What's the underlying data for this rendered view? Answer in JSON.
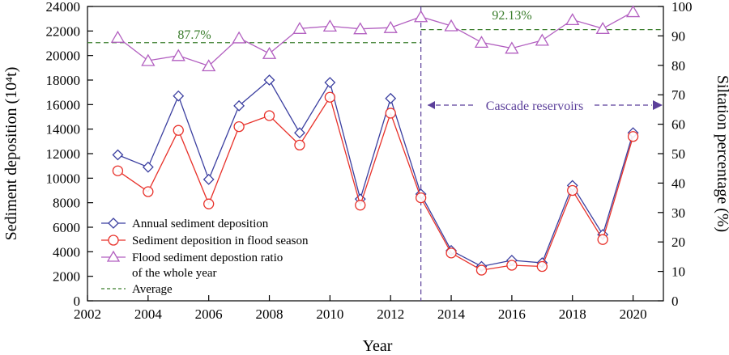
{
  "chart_data": {
    "type": "line",
    "x": [
      2003,
      2004,
      2005,
      2006,
      2007,
      2008,
      2009,
      2010,
      2011,
      2012,
      2013,
      2014,
      2015,
      2016,
      2017,
      2018,
      2019,
      2020
    ],
    "xlabel": "Year",
    "ylabel_left": "Sediment deposition (10⁴t)",
    "ylabel_right": "Siltation percentage (%)",
    "xlim": [
      2002,
      2021
    ],
    "ylim_left": [
      0,
      24000
    ],
    "ylim_right": [
      0,
      100
    ],
    "x_ticks": [
      "2002",
      "2004",
      "2006",
      "2008",
      "2010",
      "2012",
      "2014",
      "2016",
      "2018",
      "2020"
    ],
    "y_ticks_left": [
      "0",
      "2000",
      "4000",
      "6000",
      "8000",
      "10000",
      "12000",
      "14000",
      "16000",
      "18000",
      "20000",
      "22000",
      "24000"
    ],
    "y_ticks_right": [
      "0",
      "10",
      "20",
      "30",
      "40",
      "50",
      "60",
      "70",
      "80",
      "90",
      "100"
    ],
    "series": [
      {
        "name": "Annual sediment deposition",
        "axis": "left",
        "color": "#3b3fa0",
        "marker": "diamond",
        "values": [
          11900,
          10900,
          16700,
          9900,
          15900,
          18000,
          13700,
          17800,
          8300,
          16500,
          8700,
          4100,
          2800,
          3300,
          3100,
          9400,
          5400,
          13700
        ]
      },
      {
        "name": "Sediment deposition in flood season",
        "axis": "left",
        "color": "#e8312a",
        "marker": "circle",
        "values": [
          10600,
          8900,
          13900,
          7900,
          14200,
          15100,
          12700,
          16600,
          7800,
          15300,
          8400,
          3900,
          2500,
          2900,
          2800,
          9000,
          5000,
          13400
        ]
      },
      {
        "name": "Flood sediment depostion ratio",
        "name_line2": "of the whole year",
        "axis": "right",
        "color": "#b25fc0",
        "marker": "triangle",
        "values": [
          89.5,
          81.6,
          83.3,
          79.8,
          89.3,
          84.0,
          92.5,
          93.3,
          92.4,
          92.8,
          96.5,
          93.4,
          87.8,
          85.8,
          88.5,
          95.5,
          92.5,
          98.2
        ]
      }
    ],
    "averages": [
      {
        "label": "87.7%",
        "value": 87.7,
        "x_range": [
          2002,
          2013
        ],
        "axis": "right"
      },
      {
        "label": "92.13%",
        "value": 92.13,
        "x_range": [
          2013,
          2021
        ],
        "axis": "right"
      }
    ],
    "average_legend": "Average",
    "average_color": "#3a7d2c",
    "divider": {
      "x": 2013,
      "color": "#5b3f9a"
    },
    "annotation": {
      "text": "Cascade reservoirs",
      "color": "#5b3f9a"
    },
    "legend_position": "lower-left",
    "grid": false
  }
}
